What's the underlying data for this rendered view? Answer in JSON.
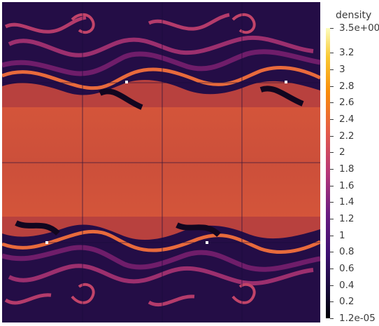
{
  "legend": {
    "title": "density",
    "max_label": "3.5e+00",
    "min_label": "1.2e-05",
    "ticks": [
      "3.2",
      "3",
      "2.8",
      "2.6",
      "2.4",
      "2.2",
      "2",
      "1.8",
      "1.6",
      "1.4",
      "1.2",
      "1",
      "0.8",
      "0.6",
      "0.4",
      "0.2"
    ],
    "range": [
      1.2e-05,
      3.5
    ],
    "colors": {
      "low": "#000004",
      "mid_low": "#3b0f70",
      "mid": "#b73779",
      "mid_high": "#f1605d",
      "high": "#fcfdbf"
    }
  },
  "field": {
    "band_value": 2.0,
    "background_value": 0.45,
    "marker_color": "#ffffff",
    "grid_line_color": "#1a0b3a"
  }
}
